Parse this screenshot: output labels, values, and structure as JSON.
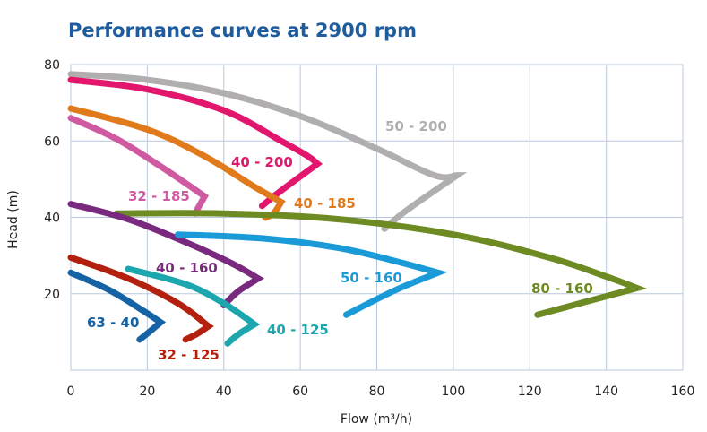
{
  "chart_data": {
    "type": "line",
    "title": "Performance curves at 2900 rpm",
    "xlabel": "Flow (m³/h)",
    "ylabel": "Head (m)",
    "xlim": [
      0,
      160
    ],
    "ylim": [
      0,
      80
    ],
    "xticks": [
      0,
      20,
      40,
      60,
      80,
      100,
      120,
      140,
      160
    ],
    "yticks": [
      20,
      40,
      60,
      80
    ],
    "grid": true,
    "legend": "inline labels",
    "series": [
      {
        "name": "50 - 200",
        "color": "#b0aeae",
        "x": [
          0,
          20,
          40,
          60,
          80,
          95,
          101,
          88,
          82
        ],
        "y": [
          77.5,
          76,
          72.5,
          66.5,
          58,
          51,
          51,
          42,
          37
        ]
      },
      {
        "name": "40 - 200",
        "color": "#e2166c",
        "x": [
          0,
          20,
          40,
          55,
          62,
          64.5,
          55,
          50
        ],
        "y": [
          76,
          73.5,
          68,
          60,
          56,
          54,
          47,
          43
        ]
      },
      {
        "name": "40 - 185",
        "color": "#e07a1a",
        "x": [
          0,
          20,
          35,
          48,
          55,
          53,
          51,
          51
        ],
        "y": [
          68.5,
          63,
          56,
          48,
          44,
          41,
          40,
          40
        ]
      },
      {
        "name": "32 - 185",
        "color": "#cf5aa2",
        "x": [
          0,
          12,
          24,
          35,
          33,
          32.5
        ],
        "y": [
          66,
          60.5,
          53,
          45.5,
          42,
          41
        ]
      },
      {
        "name": "80 - 160",
        "color": "#6e8a22",
        "x": [
          12,
          40,
          70,
          100,
          125,
          140,
          148,
          135,
          122
        ],
        "y": [
          41,
          41,
          39.5,
          35.5,
          29.5,
          24.5,
          21.5,
          18,
          14.5
        ]
      },
      {
        "name": "40 - 160",
        "color": "#7a2a7e",
        "x": [
          0,
          15,
          30,
          42,
          49,
          45,
          43,
          40
        ],
        "y": [
          43.5,
          39.5,
          33.5,
          28,
          24,
          21.5,
          20,
          17
        ]
      },
      {
        "name": "50 - 160",
        "color": "#1a9bd8",
        "x": [
          28,
          50,
          70,
          85,
          96,
          85,
          72
        ],
        "y": [
          35.5,
          34.5,
          32,
          28.5,
          25.5,
          21,
          14.5
        ]
      },
      {
        "name": "40 - 125",
        "color": "#1ba7ad",
        "x": [
          15,
          30,
          40,
          48,
          44,
          41
        ],
        "y": [
          26.5,
          22.5,
          17.5,
          12,
          9.5,
          7
        ]
      },
      {
        "name": "32 - 125",
        "color": "#b4200f",
        "x": [
          0,
          15,
          28,
          36,
          33,
          30
        ],
        "y": [
          29.5,
          24,
          17.5,
          11.5,
          9.5,
          8
        ]
      },
      {
        "name": "63 - 40",
        "color": "#1562a4",
        "x": [
          0,
          10,
          19,
          23.5,
          20.5,
          18
        ],
        "y": [
          25.5,
          21,
          15.5,
          12.5,
          10,
          8
        ]
      }
    ]
  }
}
